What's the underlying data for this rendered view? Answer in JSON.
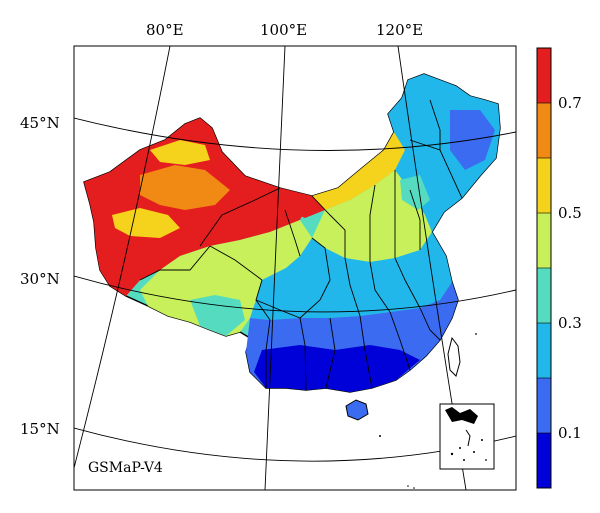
{
  "product_label": "GSMaP-V4",
  "longitude_labels": [
    "80°E",
    "100°E",
    "120°E"
  ],
  "latitude_labels": [
    "45°N",
    "30°N",
    "15°N"
  ],
  "colorbar": {
    "colors": [
      "#0000d8",
      "#3a6bf0",
      "#22b7ea",
      "#55dcc0",
      "#c8f05a",
      "#f5d21c",
      "#f08a14",
      "#e41e1e"
    ],
    "min": 0.0,
    "max": 0.8,
    "tick_labels": [
      "0.1",
      "0.3",
      "0.5",
      "0.7"
    ],
    "tick_values": [
      0.1,
      0.3,
      0.5,
      0.7
    ]
  },
  "map_data": {
    "type": "choropleth",
    "region": "China",
    "projection": "conic",
    "grid_longitudes": [
      80,
      100,
      120
    ],
    "grid_latitudes": [
      15,
      30,
      45
    ],
    "inset": "South China Sea islands",
    "value_pattern": {
      "northwest": "high (0.6–0.8)",
      "tibetan_plateau": "moderate (0.4–0.6)",
      "northeast": "low to moderate (0.2–0.35)",
      "southeast": "low (0.0–0.15)"
    }
  }
}
